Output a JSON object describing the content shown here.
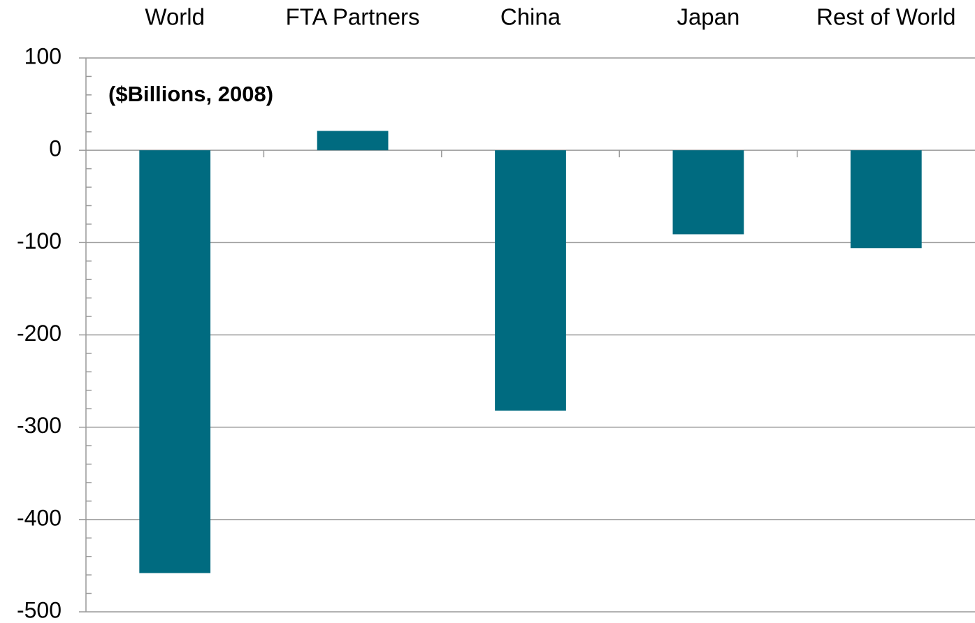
{
  "chart_data": {
    "type": "bar",
    "subtitle": "($Billions, 2008)",
    "categories": [
      "World",
      "FTA Partners",
      "China",
      "Japan",
      "Rest of World"
    ],
    "values": [
      -458,
      21,
      -282,
      -91,
      -106
    ],
    "color": "#006b80",
    "ylim": [
      -500,
      100
    ],
    "yticks": [
      -500,
      -400,
      -300,
      -200,
      -100,
      0,
      100
    ],
    "grid": true
  }
}
